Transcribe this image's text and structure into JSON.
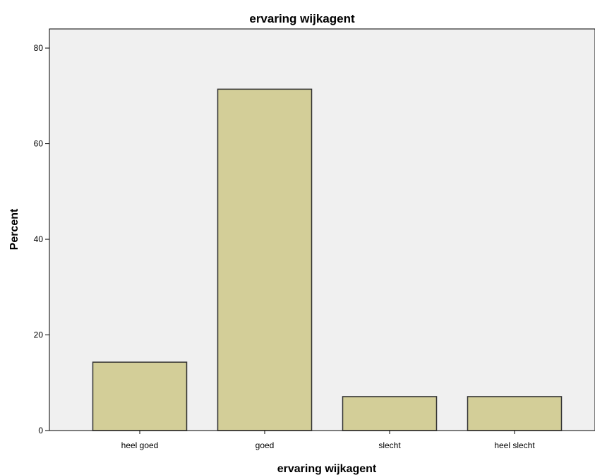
{
  "chart_data": {
    "type": "bar",
    "title": "ervaring wijkagent",
    "xlabel": "ervaring wijkagent",
    "ylabel": "Percent",
    "categories": [
      "heel goed",
      "goed",
      "slecht",
      "heel slecht"
    ],
    "values": [
      14.3,
      71.4,
      7.1,
      7.1
    ],
    "ylim": [
      0,
      84
    ],
    "yticks": [
      0,
      20,
      40,
      60,
      80
    ],
    "grid": false,
    "legend": "none",
    "colors": {
      "bar_fill": "#d3ce98",
      "bar_stroke": "#333333",
      "plot_background": "#f0f0f0",
      "axis": "#000000"
    }
  }
}
